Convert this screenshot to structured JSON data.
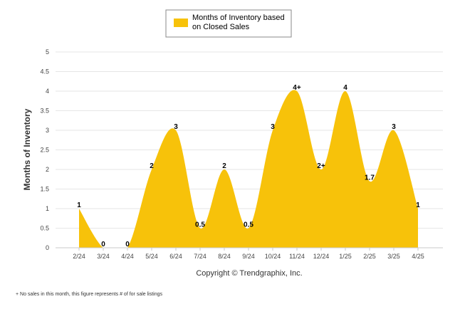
{
  "chart_data": {
    "type": "area",
    "ylabel": "Months of Inventory",
    "ylim": [
      0,
      5
    ],
    "yticks": [
      "0",
      "0.5",
      "1",
      "1.5",
      "2",
      "2.5",
      "3",
      "3.5",
      "4",
      "4.5",
      "5"
    ],
    "categories": [
      "2/24",
      "3/24",
      "4/24",
      "5/24",
      "6/24",
      "7/24",
      "8/24",
      "9/24",
      "10/24",
      "11/24",
      "12/24",
      "1/25",
      "2/25",
      "3/25",
      "4/25"
    ],
    "series": [
      {
        "name": "Months of Inventory based on Closed Sales",
        "color": "#F7C20A",
        "values": [
          1,
          0,
          0,
          2,
          3,
          0.5,
          2,
          0.5,
          3,
          4,
          2,
          4,
          1.7,
          3,
          1
        ],
        "labels": [
          "1",
          "0",
          "0",
          "2",
          "3",
          "0.5",
          "2",
          "0.5",
          "3",
          "4+",
          "2+",
          "4",
          "1.7",
          "3",
          "1"
        ]
      }
    ],
    "legend": {
      "position": "top-center",
      "lines": [
        "Months of Inventory based",
        "on Closed Sales"
      ]
    },
    "grid": true
  },
  "copyright": "Copyright © Trendgraphix, Inc.",
  "footnote": "+  No sales in this month, this figure represents # of for sale listings"
}
